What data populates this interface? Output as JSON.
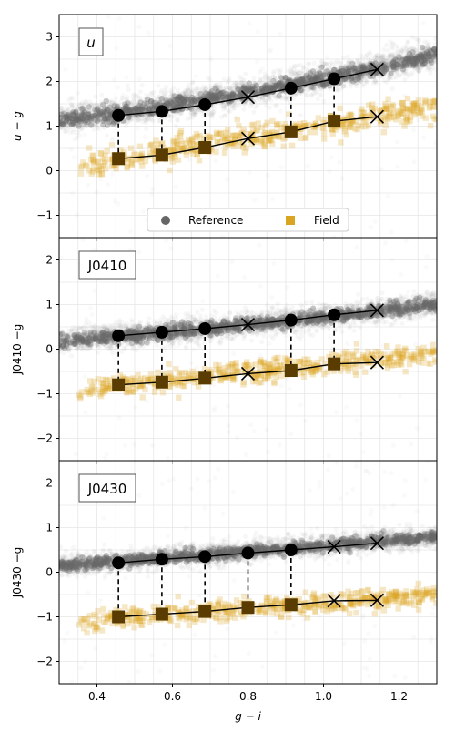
{
  "colors": {
    "reference": "#666666",
    "field": "#DAA520",
    "field_dark": "#5a3c00",
    "line": "#000000"
  },
  "chart_data": [
    {
      "type": "scatter",
      "panel_label": "u",
      "ylabel": "u − g",
      "xlabel": "",
      "xlim": [
        0.3,
        1.3
      ],
      "ylim": [
        -1.5,
        3.5
      ],
      "yticks": [
        -1,
        0,
        1,
        2,
        3
      ],
      "xticks": [
        0.4,
        0.6,
        0.8,
        1.0,
        1.2
      ],
      "show_xticklabels": false,
      "grid": true,
      "legend": {
        "placement": "lower center",
        "entries": [
          "Reference",
          "Field"
        ]
      },
      "x": [
        0.457,
        0.572,
        0.686,
        0.8,
        0.914,
        1.028,
        1.142
      ],
      "series": [
        {
          "name": "Reference",
          "values": [
            1.24,
            1.33,
            1.48,
            1.65,
            1.85,
            2.06,
            2.27
          ],
          "marker": [
            "o",
            "o",
            "o",
            "x",
            "o",
            "o",
            "x"
          ]
        },
        {
          "name": "Field",
          "values": [
            0.27,
            0.35,
            0.52,
            0.72,
            0.87,
            1.11,
            1.21
          ],
          "marker": [
            "s",
            "s",
            "s",
            "x",
            "s",
            "s",
            "x"
          ]
        }
      ],
      "cloud": {
        "x0": 0.3,
        "x1": 1.3,
        "y0": 1.12,
        "y1": 2.6,
        "curve": 0.4,
        "width": 0.3
      },
      "field_cloud": {
        "x0": 0.35,
        "x1": 1.3,
        "y0": 0.1,
        "y1": 1.45,
        "curve": 0.1,
        "width": 0.25
      }
    },
    {
      "type": "scatter",
      "panel_label": "J0410",
      "ylabel": "J0410 −g",
      "xlabel": "",
      "xlim": [
        0.3,
        1.3
      ],
      "ylim": [
        -2.5,
        2.5
      ],
      "yticks": [
        -2,
        -1,
        0,
        1,
        2
      ],
      "xticks": [
        0.4,
        0.6,
        0.8,
        1.0,
        1.2
      ],
      "show_xticklabels": false,
      "grid": true,
      "x": [
        0.457,
        0.572,
        0.686,
        0.8,
        0.914,
        1.028,
        1.142
      ],
      "series": [
        {
          "name": "Reference",
          "values": [
            0.3,
            0.38,
            0.46,
            0.55,
            0.65,
            0.77,
            0.87
          ],
          "marker": [
            "o",
            "o",
            "o",
            "x",
            "o",
            "o",
            "x"
          ]
        },
        {
          "name": "Field",
          "values": [
            -0.8,
            -0.74,
            -0.65,
            -0.55,
            -0.48,
            -0.33,
            -0.3
          ],
          "marker": [
            "s",
            "s",
            "s",
            "x",
            "s",
            "s",
            "x"
          ]
        }
      ],
      "cloud": {
        "x0": 0.3,
        "x1": 1.3,
        "y0": 0.18,
        "y1": 1.0,
        "curve": 0.15,
        "width": 0.25
      },
      "field_cloud": {
        "x0": 0.35,
        "x1": 1.3,
        "y0": -0.9,
        "y1": -0.1,
        "curve": 0.0,
        "width": 0.22
      }
    },
    {
      "type": "scatter",
      "panel_label": "J0430",
      "ylabel": "J0430 −g",
      "xlabel": "g − i",
      "xlim": [
        0.3,
        1.3
      ],
      "ylim": [
        -2.5,
        2.5
      ],
      "yticks": [
        -2,
        -1,
        0,
        1,
        2
      ],
      "xticks": [
        0.4,
        0.6,
        0.8,
        1.0,
        1.2
      ],
      "xticklabels": [
        "0.4",
        "0.6",
        "0.8",
        "1.0",
        "1.2"
      ],
      "show_xticklabels": true,
      "grid": true,
      "x": [
        0.457,
        0.572,
        0.686,
        0.8,
        0.914,
        1.028,
        1.142
      ],
      "series": [
        {
          "name": "Reference",
          "values": [
            0.21,
            0.29,
            0.35,
            0.43,
            0.5,
            0.57,
            0.65
          ],
          "marker": [
            "o",
            "o",
            "o",
            "o",
            "o",
            "x",
            "x"
          ]
        },
        {
          "name": "Field",
          "values": [
            -1.0,
            -0.94,
            -0.88,
            -0.79,
            -0.73,
            -0.64,
            -0.63
          ],
          "marker": [
            "s",
            "s",
            "s",
            "s",
            "s",
            "x",
            "x"
          ]
        }
      ],
      "cloud": {
        "x0": 0.3,
        "x1": 1.3,
        "y0": 0.15,
        "y1": 0.8,
        "curve": 0.05,
        "width": 0.22
      },
      "field_cloud": {
        "x0": 0.35,
        "x1": 1.3,
        "y0": -1.1,
        "y1": -0.5,
        "curve": 0.0,
        "width": 0.2
      }
    }
  ]
}
